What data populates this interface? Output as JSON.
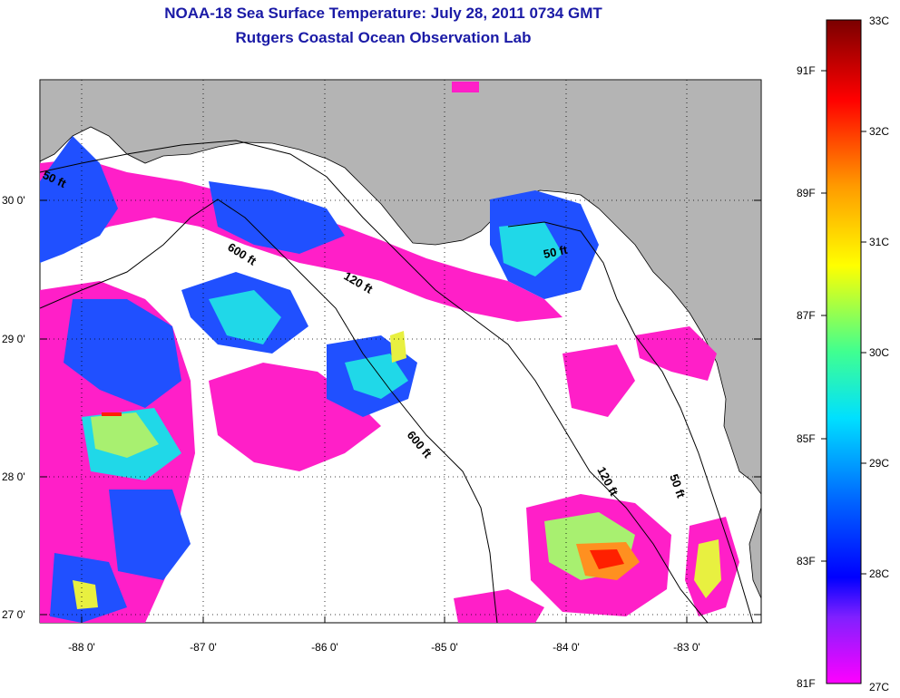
{
  "header": {
    "title": "NOAA-18 Sea Surface Temperature:  July 28, 2011 0734 GMT",
    "subtitle": "Rutgers Coastal Ocean Observation Lab"
  },
  "map": {
    "lat_labels": [
      "30 0'",
      "29 0'",
      "28 0'",
      "27 0'"
    ],
    "lon_labels": [
      "-88 0'",
      "-87 0'",
      "-86 0'",
      "-85 0'",
      "-84 0'",
      "-83 0'"
    ],
    "isobaths": [
      "50 ft",
      "600 ft",
      "120 ft",
      "50 ft",
      "600 ft",
      "120 ft",
      "50 ft"
    ],
    "colors": {
      "land": "#b4b4b4",
      "water_cloud": "#ffffff",
      "grid": "#000000"
    }
  },
  "colorbar": {
    "celsius_labels": [
      "33C",
      "32C",
      "31C",
      "30C",
      "29C",
      "28C",
      "27C"
    ],
    "fahrenheit_labels": [
      "91F",
      "89F",
      "87F",
      "85F",
      "83F",
      "81F"
    ],
    "gradient_colors": [
      "#8b0000",
      "#ff0000",
      "#ff8000",
      "#ffff00",
      "#80ff40",
      "#00ffff",
      "#0080ff",
      "#0000ff",
      "#8000ff",
      "#ff00ff"
    ]
  }
}
